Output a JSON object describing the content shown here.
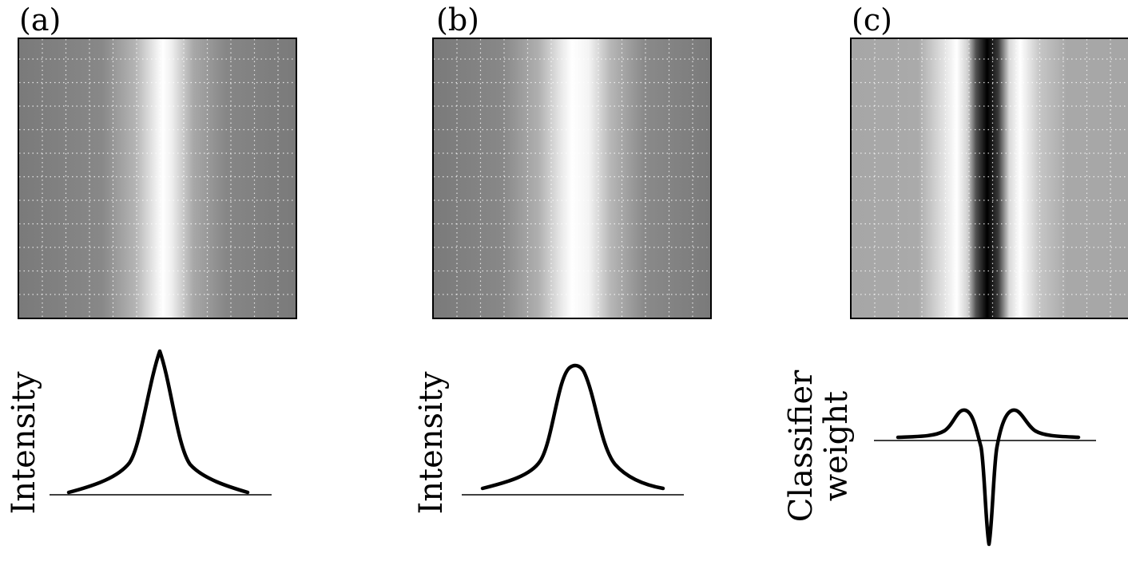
{
  "panels": [
    {
      "id": "a",
      "label": "(a)",
      "ylabel": "Intensity",
      "profile": "peak-sharp"
    },
    {
      "id": "b",
      "label": "(b)",
      "ylabel": "Intensity",
      "profile": "peak-broad"
    },
    {
      "id": "c",
      "label": "(c)",
      "ylabel_lines": [
        "Classifier",
        "weight"
      ],
      "profile": "dip-with-side-lobes"
    }
  ],
  "colors": {
    "background_gray_a": "#7a7a7a",
    "background_gray_c": "#a6a6a6",
    "band_white": "#ffffff",
    "band_black": "#000000",
    "curve": "#000000"
  }
}
